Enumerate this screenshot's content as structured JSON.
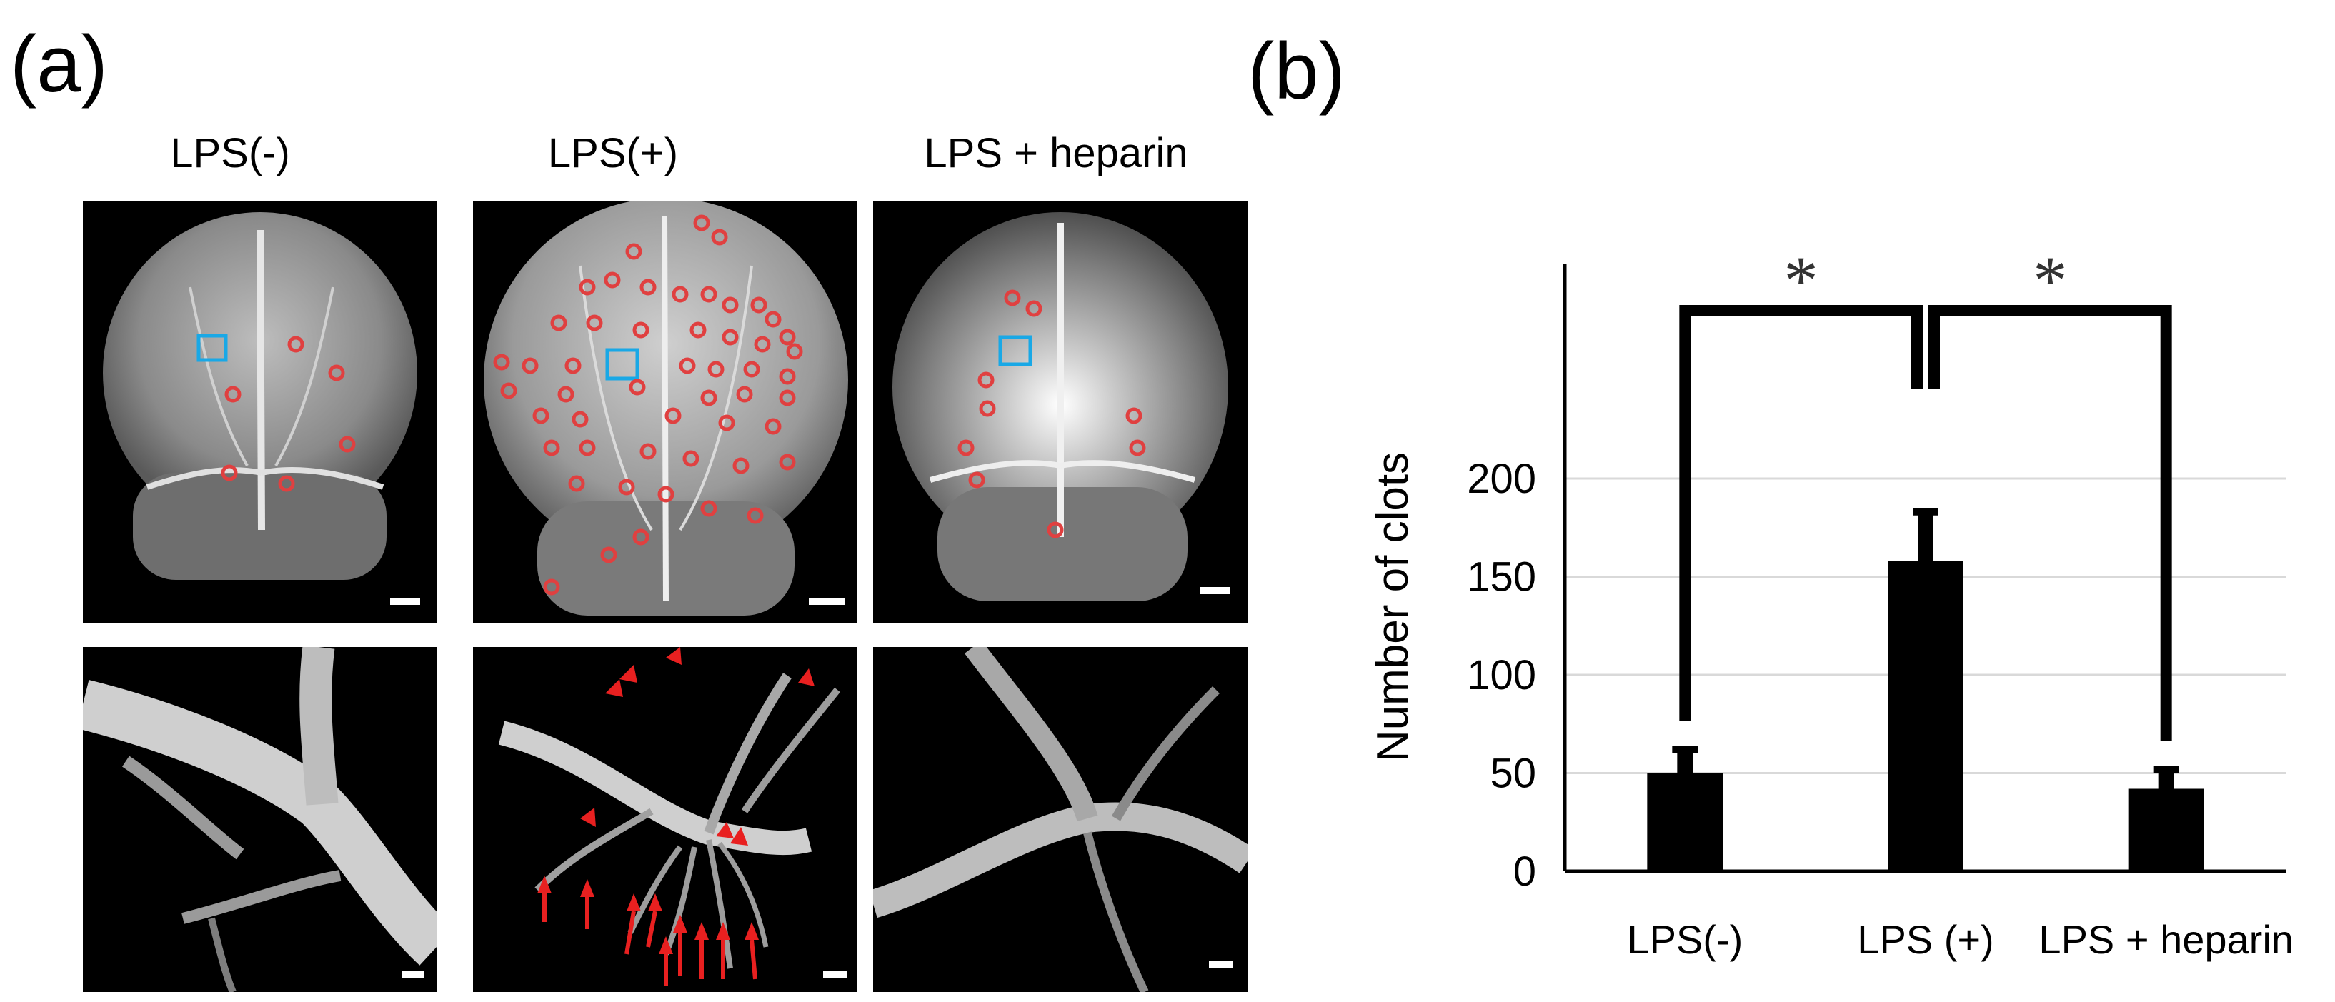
{
  "panel_labels": {
    "a": "(a)",
    "b": "(b)"
  },
  "columns": [
    {
      "title": "LPS(-)"
    },
    {
      "title": "LPS(+)"
    },
    {
      "title": "LPS + heparin"
    }
  ],
  "colors": {
    "bar": "#000000",
    "marker_circle": "#e04040",
    "roi_box": "#19a8e6",
    "arrow": "#e82020",
    "gridline": "#d9d9d9",
    "background_micrograph": "#000000"
  },
  "chart_data": {
    "type": "bar",
    "categories": [
      "LPS(-)",
      "LPS (+)",
      "LPS + heparin"
    ],
    "values": [
      50,
      158,
      42
    ],
    "errors": [
      12,
      25,
      10
    ],
    "ylabel": "Number of clots",
    "yticks": [
      0,
      50,
      100,
      150,
      200
    ],
    "ylim": [
      0,
      240
    ],
    "grid": true,
    "significance": [
      {
        "between": [
          0,
          1
        ],
        "label": "*"
      },
      {
        "between": [
          1,
          2
        ],
        "label": "*"
      }
    ]
  }
}
